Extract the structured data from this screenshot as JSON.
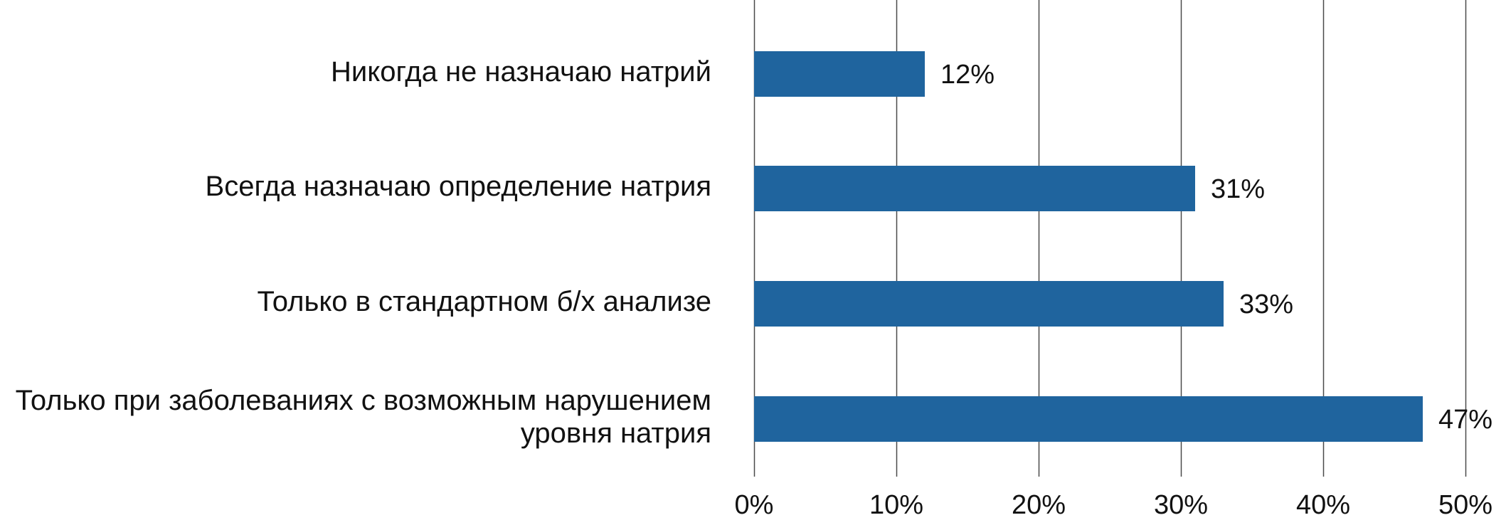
{
  "chart_data": {
    "type": "bar",
    "orientation": "horizontal",
    "categories": [
      "Никогда не назначаю натрий",
      "Всегда назначаю определение натрия",
      "Только в стандартном б/х анализе",
      "Только при заболеваниях с возможным нарушением уровня натрия"
    ],
    "category_lines": [
      [
        "Никогда не назначаю натрий"
      ],
      [
        "Всегда назначаю определение натрия"
      ],
      [
        "Только в стандартном б/х анализе"
      ],
      [
        "Только при заболеваниях с возможным нарушением",
        "уровня натрия"
      ]
    ],
    "values": [
      12,
      31,
      33,
      47
    ],
    "data_labels": [
      "12%",
      "31%",
      "33%",
      "47%"
    ],
    "xlim": [
      0,
      50
    ],
    "xticks": [
      0,
      10,
      20,
      30,
      40,
      50
    ],
    "xtick_labels": [
      "0%",
      "10%",
      "20%",
      "30%",
      "40%",
      "50%"
    ],
    "grid": true,
    "legend": "none",
    "bar_color": "#1f649e",
    "grid_color": "#4a4a4a",
    "text_color": "#111111"
  }
}
